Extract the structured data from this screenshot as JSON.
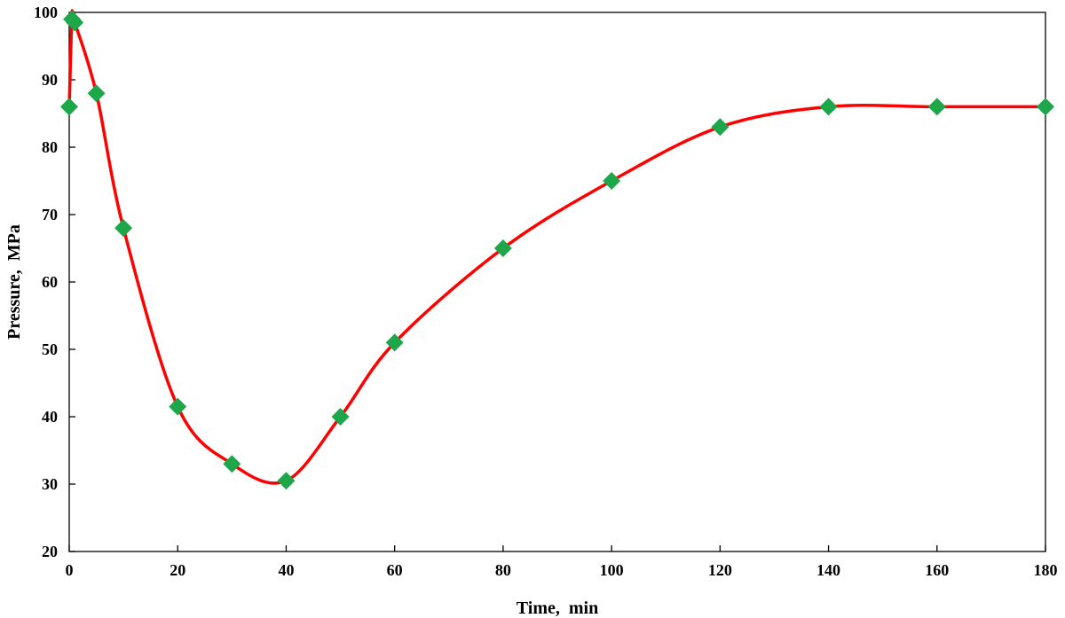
{
  "chart_data": {
    "type": "line",
    "title": "",
    "xlabel": "Time,  min",
    "ylabel": "Pressure,  MPa",
    "xlim": [
      0,
      180
    ],
    "ylim": [
      20,
      100
    ],
    "x_ticks": [
      "0",
      "20",
      "40",
      "60",
      "80",
      "100",
      "120",
      "140",
      "160",
      "180"
    ],
    "y_ticks": [
      "20",
      "30",
      "40",
      "50",
      "60",
      "70",
      "80",
      "90",
      "100"
    ],
    "grid": false,
    "legend": "none",
    "series": [
      {
        "x": [
          0,
          0.5,
          1,
          5,
          10,
          20,
          30,
          40,
          50,
          60,
          80,
          100,
          120,
          140,
          160,
          180
        ],
        "values": [
          86,
          99,
          98.5,
          88,
          68,
          41.5,
          33,
          30.5,
          40,
          51,
          65,
          75,
          83,
          86,
          86,
          86
        ]
      }
    ],
    "colors": {
      "line": "#ff0000",
      "marker": "#1ea64a",
      "axis": "#000000"
    },
    "marker": "diamond-icon"
  }
}
